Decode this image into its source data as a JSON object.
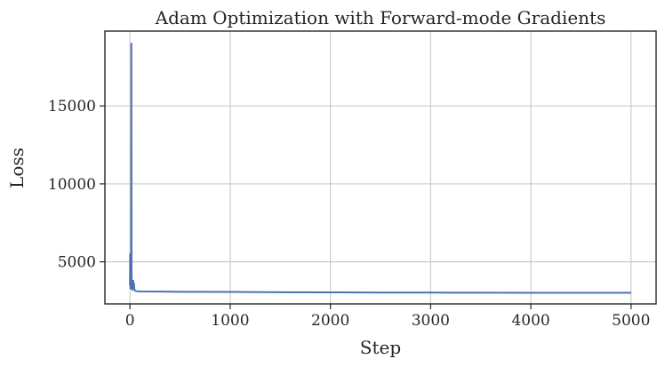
{
  "chart_data": {
    "type": "line",
    "title": "Adam Optimization with Forward-mode Gradients",
    "xlabel": "Step",
    "ylabel": "Loss",
    "xlim": [
      -250,
      5250
    ],
    "ylim": [
      2300,
      19800
    ],
    "xticks": [
      0,
      1000,
      2000,
      3000,
      4000,
      5000
    ],
    "yticks": [
      5000,
      10000,
      15000
    ],
    "grid": true,
    "line_color": "#4c72b0",
    "series": [
      {
        "x": [
          0,
          2,
          4,
          6,
          8,
          10,
          12,
          14,
          16,
          18,
          20,
          22,
          24,
          26,
          28,
          30,
          33,
          36,
          40,
          45,
          50,
          60,
          80,
          100,
          300,
          500,
          1000,
          1500,
          2000,
          2500,
          3000,
          3500,
          4000,
          4500,
          5000
        ],
        "y": [
          3500,
          5500,
          3300,
          3600,
          3400,
          3300,
          3500,
          19000,
          4000,
          3400,
          3300,
          3250,
          3200,
          3300,
          3400,
          3500,
          3800,
          3400,
          3600,
          3200,
          3150,
          3120,
          3110,
          3100,
          3090,
          3080,
          3070,
          3050,
          3040,
          3030,
          3025,
          3020,
          3015,
          3012,
          3010
        ]
      }
    ]
  }
}
